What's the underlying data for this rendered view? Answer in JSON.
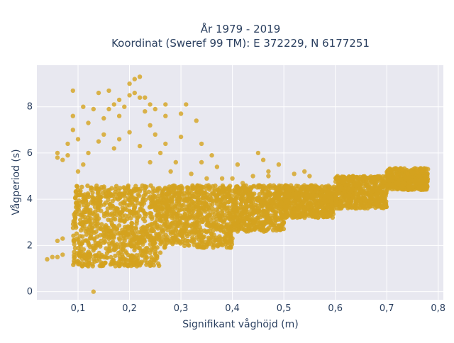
{
  "chart_data": {
    "type": "scatter",
    "title_line1": "År 1979 - 2019",
    "title_line2": "Koordinat (Sweref 99 TM): E 372229, N 6177251",
    "xlabel": "Signifikant våghöjd (m)",
    "ylabel": "Vågperiod (s)",
    "xlim": [
      0.02,
      0.81
    ],
    "ylim": [
      -0.35,
      9.8
    ],
    "x_ticks": [
      0.1,
      0.2,
      0.3,
      0.4,
      0.5,
      0.6,
      0.7,
      0.8
    ],
    "x_tick_labels": [
      "0,1",
      "0,2",
      "0,3",
      "0,4",
      "0,5",
      "0,6",
      "0,7",
      "0,8"
    ],
    "y_ticks": [
      0,
      2,
      4,
      6,
      8
    ],
    "y_tick_labels": [
      "0",
      "2",
      "4",
      "6",
      "8"
    ],
    "grid": true,
    "legend": "none",
    "marker_color": "#d4a21e",
    "plot_bg": "#e8e8f0",
    "grid_color": "#ffffff",
    "density_note": "dense cloud of several thousand points; the main band and outliers below are representative",
    "main_band": [
      {
        "x_from": 0.09,
        "x_to": 0.26,
        "y_low": 1.1,
        "y_high": 4.6
      },
      {
        "x_from": 0.26,
        "x_to": 0.4,
        "y_low": 1.9,
        "y_high": 4.6
      },
      {
        "x_from": 0.4,
        "x_to": 0.5,
        "y_low": 2.6,
        "y_high": 4.6
      },
      {
        "x_from": 0.5,
        "x_to": 0.6,
        "y_low": 3.2,
        "y_high": 4.6
      },
      {
        "x_from": 0.6,
        "x_to": 0.7,
        "y_low": 3.6,
        "y_high": 5.0
      },
      {
        "x_from": 0.7,
        "x_to": 0.78,
        "y_low": 4.4,
        "y_high": 5.35
      }
    ],
    "points": [
      [
        0.04,
        1.4
      ],
      [
        0.05,
        1.5
      ],
      [
        0.06,
        1.5
      ],
      [
        0.07,
        1.6
      ],
      [
        0.06,
        2.2
      ],
      [
        0.07,
        2.3
      ],
      [
        0.06,
        5.8
      ],
      [
        0.07,
        5.7
      ],
      [
        0.06,
        6.0
      ],
      [
        0.08,
        6.4
      ],
      [
        0.08,
        5.9
      ],
      [
        0.09,
        8.7
      ],
      [
        0.09,
        7.6
      ],
      [
        0.09,
        7.0
      ],
      [
        0.1,
        6.6
      ],
      [
        0.11,
        8.0
      ],
      [
        0.12,
        7.3
      ],
      [
        0.14,
        8.6
      ],
      [
        0.13,
        7.9
      ],
      [
        0.16,
        8.7
      ],
      [
        0.15,
        7.5
      ],
      [
        0.16,
        7.9
      ],
      [
        0.17,
        8.1
      ],
      [
        0.18,
        7.6
      ],
      [
        0.18,
        8.3
      ],
      [
        0.19,
        8.0
      ],
      [
        0.2,
        8.5
      ],
      [
        0.2,
        9.0
      ],
      [
        0.21,
        9.2
      ],
      [
        0.22,
        9.3
      ],
      [
        0.21,
        8.6
      ],
      [
        0.22,
        8.4
      ],
      [
        0.23,
        8.4
      ],
      [
        0.23,
        7.8
      ],
      [
        0.24,
        8.1
      ],
      [
        0.24,
        7.2
      ],
      [
        0.25,
        7.9
      ],
      [
        0.25,
        6.8
      ],
      [
        0.26,
        6.0
      ],
      [
        0.27,
        7.6
      ],
      [
        0.27,
        8.1
      ],
      [
        0.27,
        6.4
      ],
      [
        0.3,
        7.7
      ],
      [
        0.31,
        8.1
      ],
      [
        0.29,
        5.6
      ],
      [
        0.3,
        6.7
      ],
      [
        0.33,
        7.4
      ],
      [
        0.34,
        6.4
      ],
      [
        0.34,
        5.6
      ],
      [
        0.32,
        5.1
      ],
      [
        0.35,
        4.9
      ],
      [
        0.37,
        5.4
      ],
      [
        0.36,
        5.9
      ],
      [
        0.38,
        4.9
      ],
      [
        0.4,
        4.9
      ],
      [
        0.41,
        5.5
      ],
      [
        0.42,
        4.7
      ],
      [
        0.44,
        5.0
      ],
      [
        0.45,
        6.0
      ],
      [
        0.46,
        5.7
      ],
      [
        0.47,
        5.2
      ],
      [
        0.47,
        5.0
      ],
      [
        0.49,
        5.5
      ],
      [
        0.52,
        5.1
      ],
      [
        0.54,
        5.2
      ],
      [
        0.55,
        5.0
      ],
      [
        0.17,
        6.2
      ],
      [
        0.18,
        6.6
      ],
      [
        0.22,
        6.3
      ],
      [
        0.12,
        6.0
      ],
      [
        0.14,
        6.5
      ],
      [
        0.11,
        5.5
      ],
      [
        0.1,
        5.2
      ],
      [
        0.2,
        6.9
      ],
      [
        0.15,
        6.8
      ],
      [
        0.28,
        5.2
      ],
      [
        0.24,
        5.6
      ],
      [
        0.13,
        0.0
      ],
      [
        0.1,
        1.2
      ],
      [
        0.12,
        1.1
      ],
      [
        0.15,
        1.2
      ],
      [
        0.18,
        1.3
      ],
      [
        0.22,
        1.6
      ],
      [
        0.78,
        5.3
      ],
      [
        0.77,
        5.25
      ],
      [
        0.74,
        5.1
      ],
      [
        0.76,
        5.2
      ],
      [
        0.72,
        5.0
      ],
      [
        0.73,
        5.3
      ],
      [
        0.7,
        5.05
      ],
      [
        0.69,
        4.9
      ],
      [
        0.66,
        4.8
      ]
    ]
  }
}
